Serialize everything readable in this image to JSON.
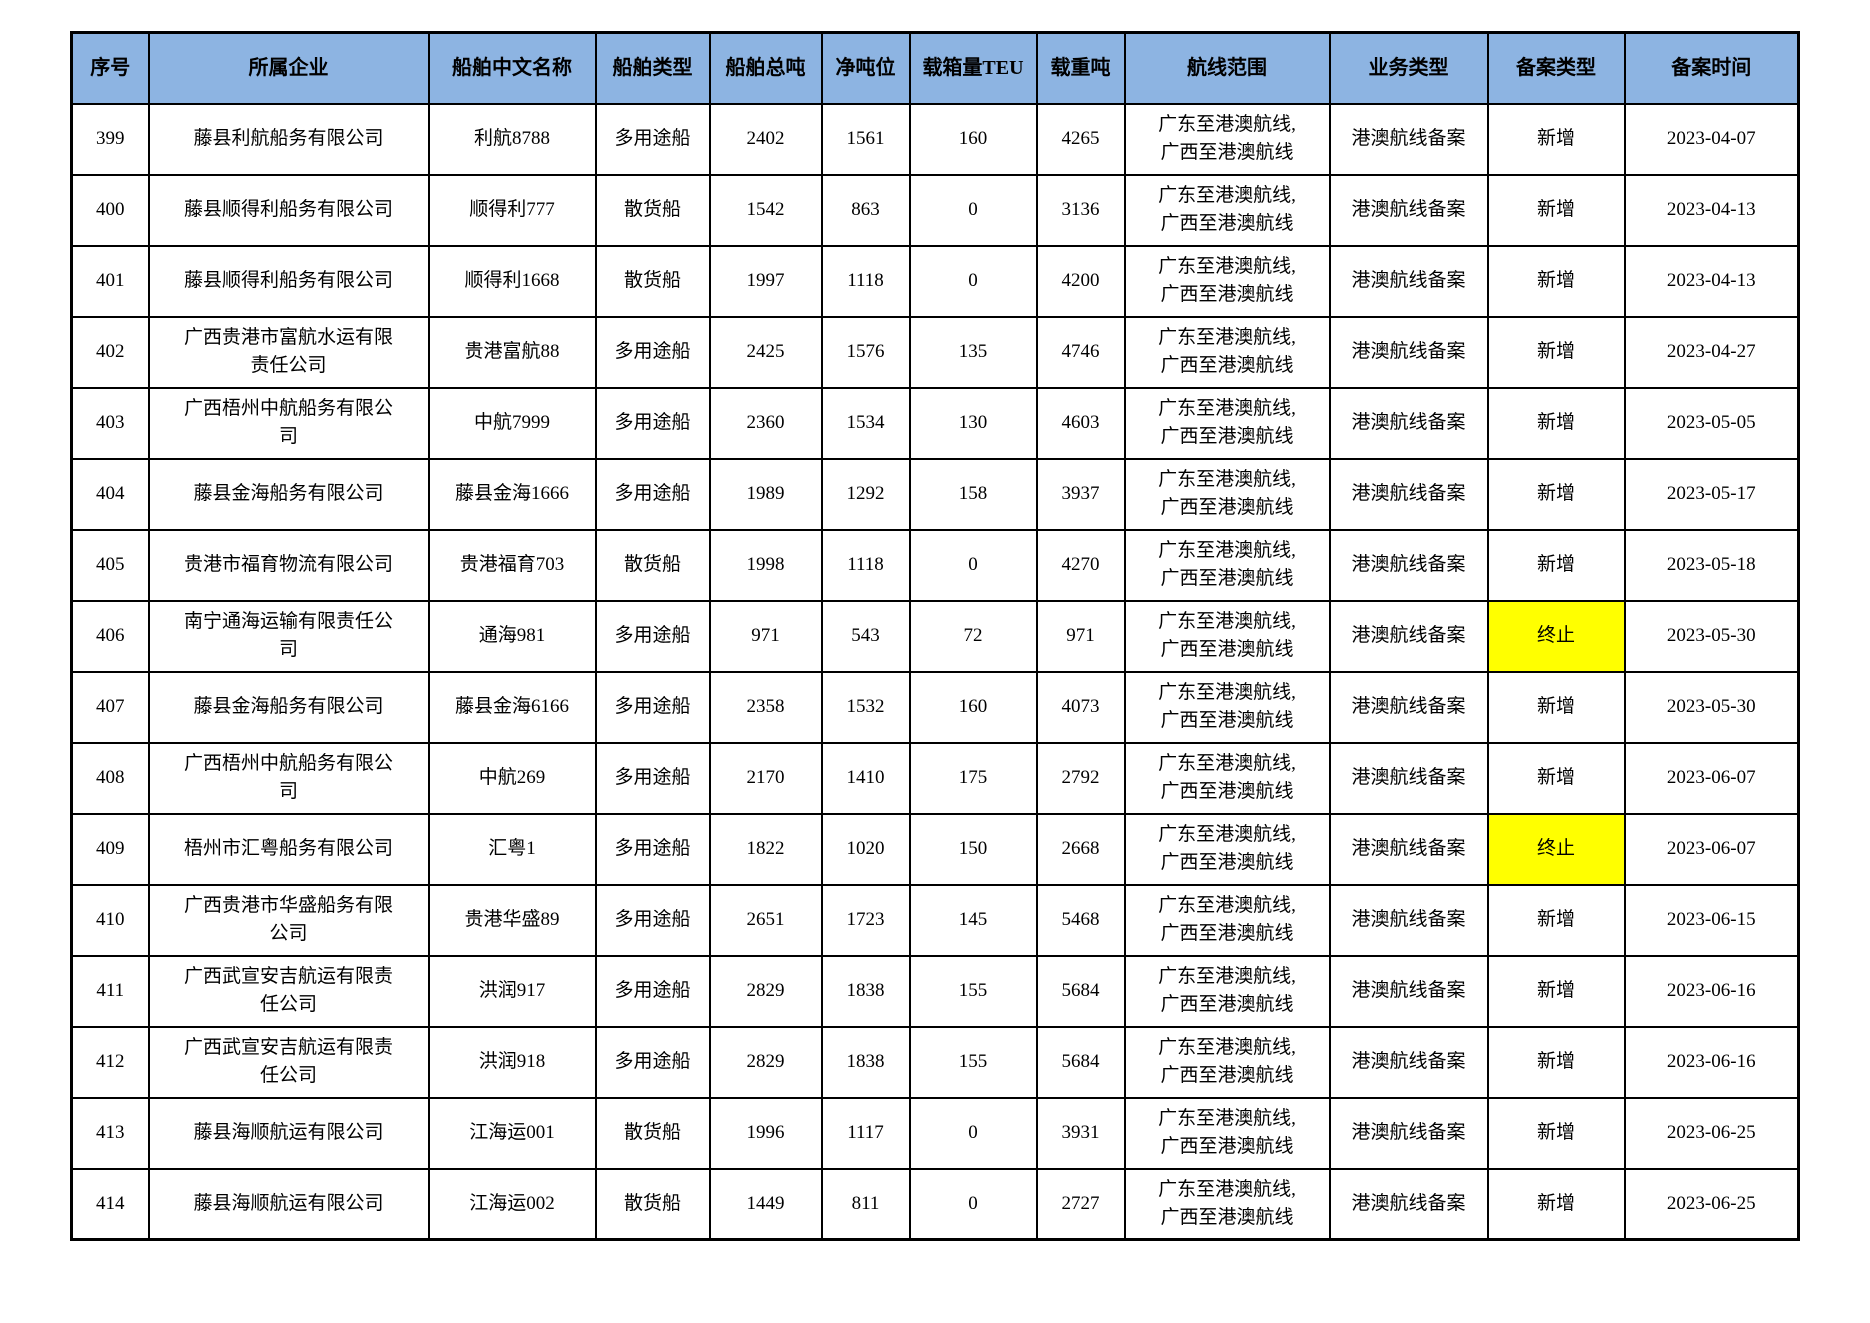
{
  "table": {
    "headers": [
      "序号",
      "所属企业",
      "船舶中文名称",
      "船舶类型",
      "船舶总吨",
      "净吨位",
      "载箱量TEU",
      "载重吨",
      "航线范围",
      "业务类型",
      "备案类型",
      "备案时间"
    ],
    "colors": {
      "header_bg": "#8DB4E2",
      "highlight_bg": "#FFFF00",
      "border": "#000000"
    },
    "rows": [
      {
        "seq": "399",
        "company": "藤县利航船务有限公司",
        "ship_name": "利航8788",
        "ship_type": "多用途船",
        "gross_tonnage": "2402",
        "net_tonnage": "1561",
        "teu": "160",
        "deadweight": "4265",
        "route_line1": "广东至港澳航线,",
        "route_line2": "广西至港澳航线",
        "business_type": "港澳航线备案",
        "filing_type": "新增",
        "filing_type_highlight": false,
        "filing_date": "2023-04-07"
      },
      {
        "seq": "400",
        "company": "藤县顺得利船务有限公司",
        "ship_name": "顺得利777",
        "ship_type": "散货船",
        "gross_tonnage": "1542",
        "net_tonnage": "863",
        "teu": "0",
        "deadweight": "3136",
        "route_line1": "广东至港澳航线,",
        "route_line2": "广西至港澳航线",
        "business_type": "港澳航线备案",
        "filing_type": "新增",
        "filing_type_highlight": false,
        "filing_date": "2023-04-13"
      },
      {
        "seq": "401",
        "company": "藤县顺得利船务有限公司",
        "ship_name": "顺得利1668",
        "ship_type": "散货船",
        "gross_tonnage": "1997",
        "net_tonnage": "1118",
        "teu": "0",
        "deadweight": "4200",
        "route_line1": "广东至港澳航线,",
        "route_line2": "广西至港澳航线",
        "business_type": "港澳航线备案",
        "filing_type": "新增",
        "filing_type_highlight": false,
        "filing_date": "2023-04-13"
      },
      {
        "seq": "402",
        "company": "广西贵港市富航水运有限责任公司",
        "ship_name": "贵港富航88",
        "ship_type": "多用途船",
        "gross_tonnage": "2425",
        "net_tonnage": "1576",
        "teu": "135",
        "deadweight": "4746",
        "route_line1": "广东至港澳航线,",
        "route_line2": "广西至港澳航线",
        "business_type": "港澳航线备案",
        "filing_type": "新增",
        "filing_type_highlight": false,
        "filing_date": "2023-04-27"
      },
      {
        "seq": "403",
        "company": "广西梧州中航船务有限公司",
        "ship_name": "中航7999",
        "ship_type": "多用途船",
        "gross_tonnage": "2360",
        "net_tonnage": "1534",
        "teu": "130",
        "deadweight": "4603",
        "route_line1": "广东至港澳航线,",
        "route_line2": "广西至港澳航线",
        "business_type": "港澳航线备案",
        "filing_type": "新增",
        "filing_type_highlight": false,
        "filing_date": "2023-05-05"
      },
      {
        "seq": "404",
        "company": "藤县金海船务有限公司",
        "ship_name": "藤县金海1666",
        "ship_type": "多用途船",
        "gross_tonnage": "1989",
        "net_tonnage": "1292",
        "teu": "158",
        "deadweight": "3937",
        "route_line1": "广东至港澳航线,",
        "route_line2": "广西至港澳航线",
        "business_type": "港澳航线备案",
        "filing_type": "新增",
        "filing_type_highlight": false,
        "filing_date": "2023-05-17"
      },
      {
        "seq": "405",
        "company": "贵港市福育物流有限公司",
        "ship_name": "贵港福育703",
        "ship_type": "散货船",
        "gross_tonnage": "1998",
        "net_tonnage": "1118",
        "teu": "0",
        "deadweight": "4270",
        "route_line1": "广东至港澳航线,",
        "route_line2": "广西至港澳航线",
        "business_type": "港澳航线备案",
        "filing_type": "新增",
        "filing_type_highlight": false,
        "filing_date": "2023-05-18"
      },
      {
        "seq": "406",
        "company": "南宁通海运输有限责任公司",
        "ship_name": "通海981",
        "ship_type": "多用途船",
        "gross_tonnage": "971",
        "net_tonnage": "543",
        "teu": "72",
        "deadweight": "971",
        "route_line1": "广东至港澳航线,",
        "route_line2": "广西至港澳航线",
        "business_type": "港澳航线备案",
        "filing_type": "终止",
        "filing_type_highlight": true,
        "filing_date": "2023-05-30"
      },
      {
        "seq": "407",
        "company": "藤县金海船务有限公司",
        "ship_name": "藤县金海6166",
        "ship_type": "多用途船",
        "gross_tonnage": "2358",
        "net_tonnage": "1532",
        "teu": "160",
        "deadweight": "4073",
        "route_line1": "广东至港澳航线,",
        "route_line2": "广西至港澳航线",
        "business_type": "港澳航线备案",
        "filing_type": "新增",
        "filing_type_highlight": false,
        "filing_date": "2023-05-30"
      },
      {
        "seq": "408",
        "company": "广西梧州中航船务有限公司",
        "ship_name": "中航269",
        "ship_type": "多用途船",
        "gross_tonnage": "2170",
        "net_tonnage": "1410",
        "teu": "175",
        "deadweight": "2792",
        "route_line1": "广东至港澳航线,",
        "route_line2": "广西至港澳航线",
        "business_type": "港澳航线备案",
        "filing_type": "新增",
        "filing_type_highlight": false,
        "filing_date": "2023-06-07"
      },
      {
        "seq": "409",
        "company": "梧州市汇粤船务有限公司",
        "ship_name": "汇粤1",
        "ship_type": "多用途船",
        "gross_tonnage": "1822",
        "net_tonnage": "1020",
        "teu": "150",
        "deadweight": "2668",
        "route_line1": "广东至港澳航线,",
        "route_line2": "广西至港澳航线",
        "business_type": "港澳航线备案",
        "filing_type": "终止",
        "filing_type_highlight": true,
        "filing_date": "2023-06-07"
      },
      {
        "seq": "410",
        "company": "广西贵港市华盛船务有限公司",
        "ship_name": "贵港华盛89",
        "ship_type": "多用途船",
        "gross_tonnage": "2651",
        "net_tonnage": "1723",
        "teu": "145",
        "deadweight": "5468",
        "route_line1": "广东至港澳航线,",
        "route_line2": "广西至港澳航线",
        "business_type": "港澳航线备案",
        "filing_type": "新增",
        "filing_type_highlight": false,
        "filing_date": "2023-06-15"
      },
      {
        "seq": "411",
        "company": "广西武宣安吉航运有限责任公司",
        "ship_name": "洪润917",
        "ship_type": "多用途船",
        "gross_tonnage": "2829",
        "net_tonnage": "1838",
        "teu": "155",
        "deadweight": "5684",
        "route_line1": "广东至港澳航线,",
        "route_line2": "广西至港澳航线",
        "business_type": "港澳航线备案",
        "filing_type": "新增",
        "filing_type_highlight": false,
        "filing_date": "2023-06-16"
      },
      {
        "seq": "412",
        "company": "广西武宣安吉航运有限责任公司",
        "ship_name": "洪润918",
        "ship_type": "多用途船",
        "gross_tonnage": "2829",
        "net_tonnage": "1838",
        "teu": "155",
        "deadweight": "5684",
        "route_line1": "广东至港澳航线,",
        "route_line2": "广西至港澳航线",
        "business_type": "港澳航线备案",
        "filing_type": "新增",
        "filing_type_highlight": false,
        "filing_date": "2023-06-16"
      },
      {
        "seq": "413",
        "company": "藤县海顺航运有限公司",
        "ship_name": "江海运001",
        "ship_type": "散货船",
        "gross_tonnage": "1996",
        "net_tonnage": "1117",
        "teu": "0",
        "deadweight": "3931",
        "route_line1": "广东至港澳航线,",
        "route_line2": "广西至港澳航线",
        "business_type": "港澳航线备案",
        "filing_type": "新增",
        "filing_type_highlight": false,
        "filing_date": "2023-06-25"
      },
      {
        "seq": "414",
        "company": "藤县海顺航运有限公司",
        "ship_name": "江海运002",
        "ship_type": "散货船",
        "gross_tonnage": "1449",
        "net_tonnage": "811",
        "teu": "0",
        "deadweight": "2727",
        "route_line1": "广东至港澳航线,",
        "route_line2": "广西至港澳航线",
        "business_type": "港澳航线备案",
        "filing_type": "新增",
        "filing_type_highlight": false,
        "filing_date": "2023-06-25"
      }
    ]
  }
}
